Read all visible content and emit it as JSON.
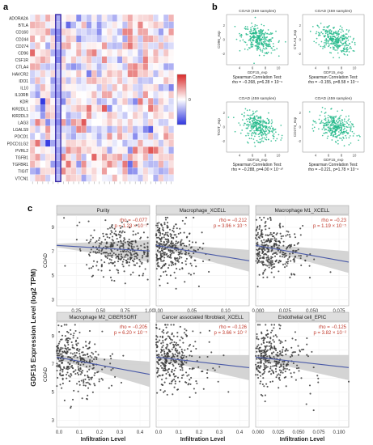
{
  "panel_labels": {
    "a": "a",
    "b": "b",
    "c": "c"
  },
  "colors": {
    "heat_blue": "#2f35e0",
    "heat_red": "#d92a2a",
    "heat_highlight": "#3a2aa8",
    "scatter_green": "#22b98a",
    "scatter_grey": "#3a3a3a",
    "trend_blue": "#4a5aa8",
    "band_grey": "#c9c9c9",
    "strip_bg": "#dedede",
    "annot_red": "#c0392b"
  },
  "chart_data": [
    {
      "id": "heatmap",
      "type": "heatmap",
      "rows": [
        "ADORA2A",
        "BTLA",
        "CD160",
        "CD244",
        "CD274",
        "CD96",
        "CSF1R",
        "CTLA4",
        "HAVCR2",
        "IDO1",
        "IL10",
        "IL10RB",
        "KDR",
        "KIR2DL1",
        "KIR2DL3",
        "LAG3",
        "LGALS9",
        "PDCD1",
        "PDCD1LG2",
        "PVRL2",
        "TGFB1",
        "TGFBR1",
        "TIGIT",
        "VTCN1"
      ],
      "n_cols": 28,
      "highlight_col": 5,
      "legend_ticks": [
        "0"
      ]
    },
    {
      "id": "spearman-cd96",
      "type": "scatter",
      "title": "COAD (459 samples)",
      "xlabel": "GDF15_exp",
      "ylabel": "CD96_exp",
      "xticks": [
        "4",
        "6",
        "8",
        "10"
      ],
      "yticks": [
        "-2",
        "0",
        "2"
      ],
      "caption1": "Spearman Correlation Test:",
      "caption2": "rho = −0.268, p=6.28 × 10⁻⁹"
    },
    {
      "id": "spearman-ctla4",
      "type": "scatter",
      "title": "COAD (459 samples)",
      "xlabel": "GDF15_exp",
      "ylabel": "CTLA4_exp",
      "xticks": [
        "4",
        "6",
        "8",
        "10"
      ],
      "yticks": [
        "-2",
        "0",
        "2"
      ],
      "caption1": "Spearman Correlation Test:",
      "caption2": "rho = −0.155, p=8.58 × 10⁻⁴"
    },
    {
      "id": "spearman-tigit",
      "type": "scatter",
      "title": "COAD (459 samples)",
      "xlabel": "GDF15_exp",
      "ylabel": "TIGIT_exp",
      "xticks": [
        "4",
        "6",
        "8",
        "10"
      ],
      "yticks": [
        "-2",
        "0",
        "2"
      ],
      "caption1": "Spearman Correlation Test:",
      "caption2": "rho = −0.288, p=4.00 × 10⁻¹⁰"
    },
    {
      "id": "spearman-cd274",
      "type": "scatter",
      "title": "COAD (459 samples)",
      "xlabel": "GDF15_exp",
      "ylabel": "CD274_exp",
      "xticks": [
        "4",
        "6",
        "8",
        "10"
      ],
      "yticks": [
        "-2",
        "0",
        "2"
      ],
      "caption1": "Spearman Correlation Test:",
      "caption2": "rho = −0.221, p=1.78 × 10⁻⁶"
    },
    {
      "id": "timer-purity",
      "type": "scatter",
      "title": "Purity",
      "xlabel": "Purity",
      "xticks": [
        "0.25",
        "0.50",
        "0.75",
        "1.00"
      ],
      "rho": "rho = −0.077",
      "p": "p = 1.23 × 10⁻¹"
    },
    {
      "id": "timer-macrophage-xcell",
      "type": "scatter",
      "title": "Macrophage_XCELL",
      "xlabel": "Infiltration Level",
      "xticks": [
        "0.00",
        "0.05",
        "0.10"
      ],
      "rho": "rho = −0.212",
      "p": "p = 3.96 × 10⁻⁵"
    },
    {
      "id": "timer-macrophage-m1-xcell",
      "type": "scatter",
      "title": "Macrophage M1_XCELL",
      "xlabel": "Infiltration Level",
      "xticks": [
        "0.000",
        "0.025",
        "0.050",
        "0.075"
      ],
      "rho": "rho = −0.23",
      "p": "p = 1.19 × 10⁻⁵"
    },
    {
      "id": "timer-macrophage-m2-cibersort",
      "type": "scatter",
      "title": "Macrophage M2_CIBERSORT",
      "xlabel": "Infiltration Level",
      "xticks": [
        "0.0",
        "0.1",
        "0.2",
        "0.3",
        "0.4"
      ],
      "rho": "rho = −0.205",
      "p": "p = 6.20 × 10⁻⁵"
    },
    {
      "id": "timer-caf-xcell",
      "type": "scatter",
      "title": "Cancer associated fibroblast_XCELL",
      "xlabel": "Infiltration Level",
      "xticks": [
        "0.0",
        "0.1",
        "0.2",
        "0.3",
        "0.4"
      ],
      "rho": "rho = −0.126",
      "p": "p = 3.66 × 10⁻²"
    },
    {
      "id": "timer-endothelial-epic",
      "type": "scatter",
      "title": "Endothelial cell_EPIC",
      "xlabel": "Infiltration Level",
      "xticks": [
        "0.000",
        "0.025",
        "0.050",
        "0.075",
        "0.100"
      ],
      "rho": "rho = −0.125",
      "p": "p = 3.82 × 10⁻²"
    }
  ],
  "panel_c": {
    "ylabel": "GDF15 Expression Level (log2 TPM)",
    "row_label": "COAD",
    "yticks": [
      "3",
      "5",
      "7",
      "9"
    ]
  }
}
